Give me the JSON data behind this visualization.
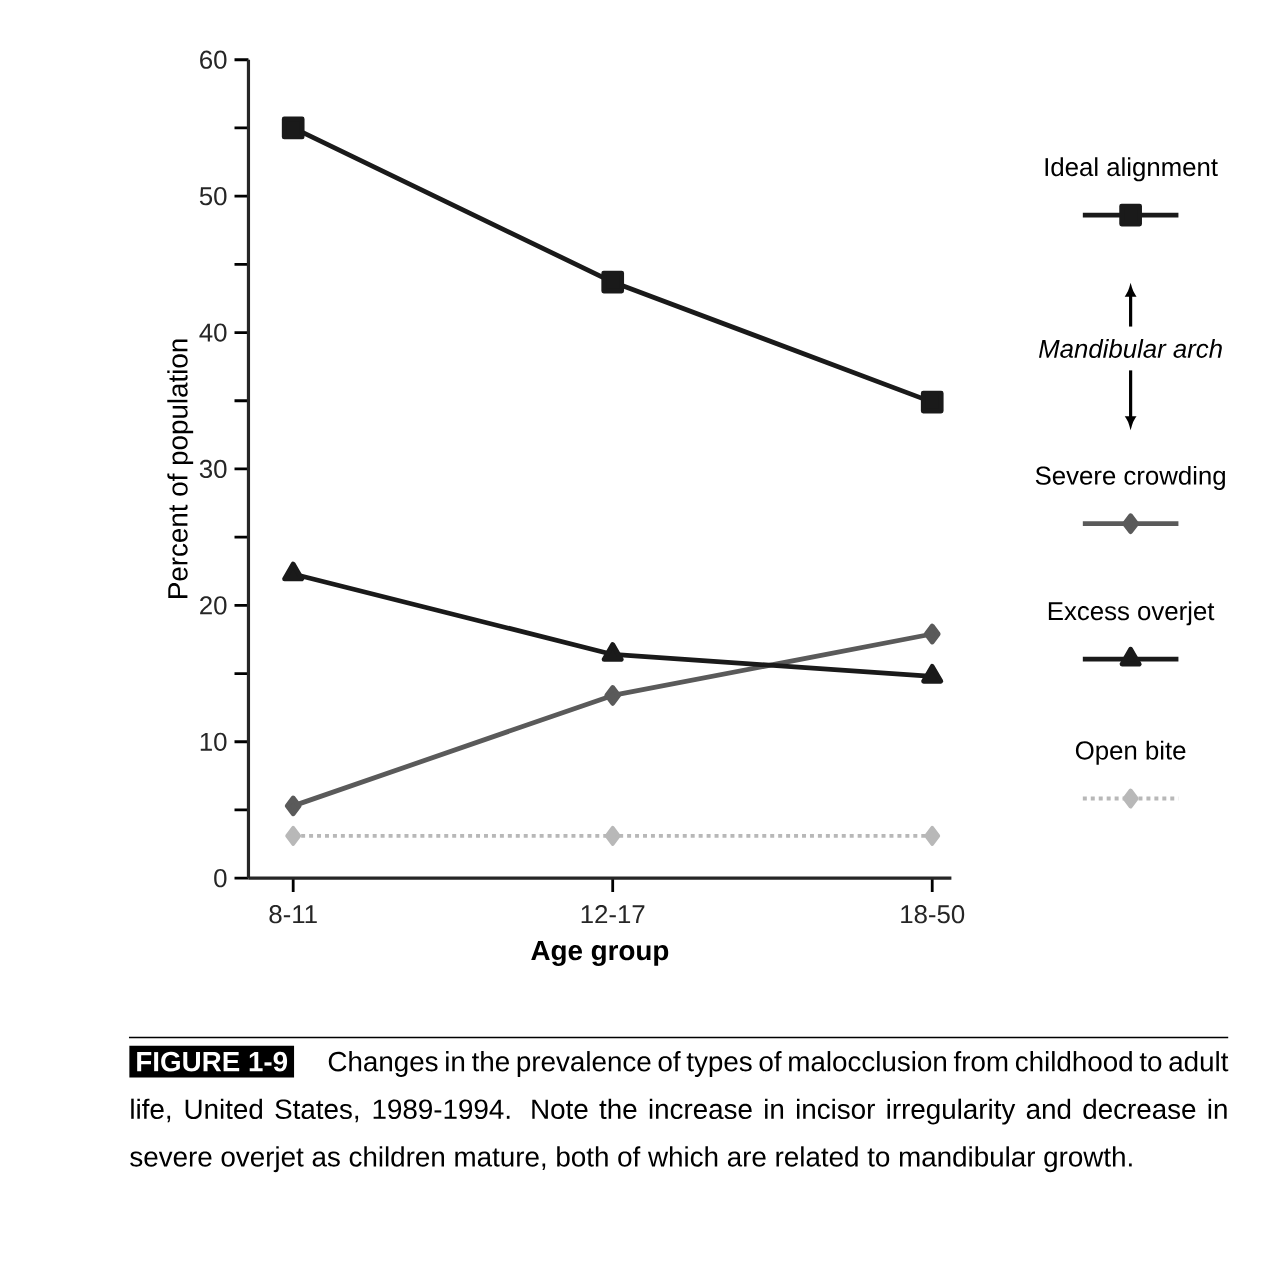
{
  "chart_data": {
    "type": "line",
    "xlabel": "Age group",
    "ylabel": "Percent of population",
    "categories": [
      "8-11",
      "12-17",
      "18-50"
    ],
    "ylim": [
      0,
      60
    ],
    "yticks": [
      0,
      {
        "value": 5,
        "label": null
      },
      10,
      {
        "value": 15,
        "label": null
      },
      20,
      {
        "value": 25,
        "label": null
      },
      30,
      {
        "value": 35,
        "label": null
      },
      40,
      {
        "value": 45,
        "label": null
      },
      50,
      {
        "value": 55,
        "label": null
      },
      60
    ],
    "legend": "right",
    "series": [
      {
        "name": "Ideal alignment",
        "color": "#1a1a1a",
        "marker": "square",
        "line_style": "solid",
        "values": [
          55.0,
          43.7,
          34.9
        ]
      },
      {
        "name": "Severe crowding",
        "color": "#5a5a5a",
        "marker": "diamond",
        "line_style": "solid",
        "values": [
          5.3,
          13.4,
          17.9
        ]
      },
      {
        "name": "Excess overjet",
        "color": "#1a1a1a",
        "marker": "triangle",
        "line_style": "solid",
        "values": [
          22.3,
          16.4,
          14.8
        ]
      },
      {
        "name": "Open bite",
        "color": "#b8b8b8",
        "marker": "diamond",
        "line_style": "dotted",
        "values": [
          3.1,
          3.1,
          3.1
        ]
      }
    ],
    "annotations": [
      "Mandibular arch",
      "FIGURE 1-9",
      "Changes in the prevalence of types of malocclusion from childhood to adult life, United States, 1989-1994. Note the increase in incisor irregularity and decrease in severe overjet as children mature, both of which are related to mandibular growth."
    ]
  }
}
